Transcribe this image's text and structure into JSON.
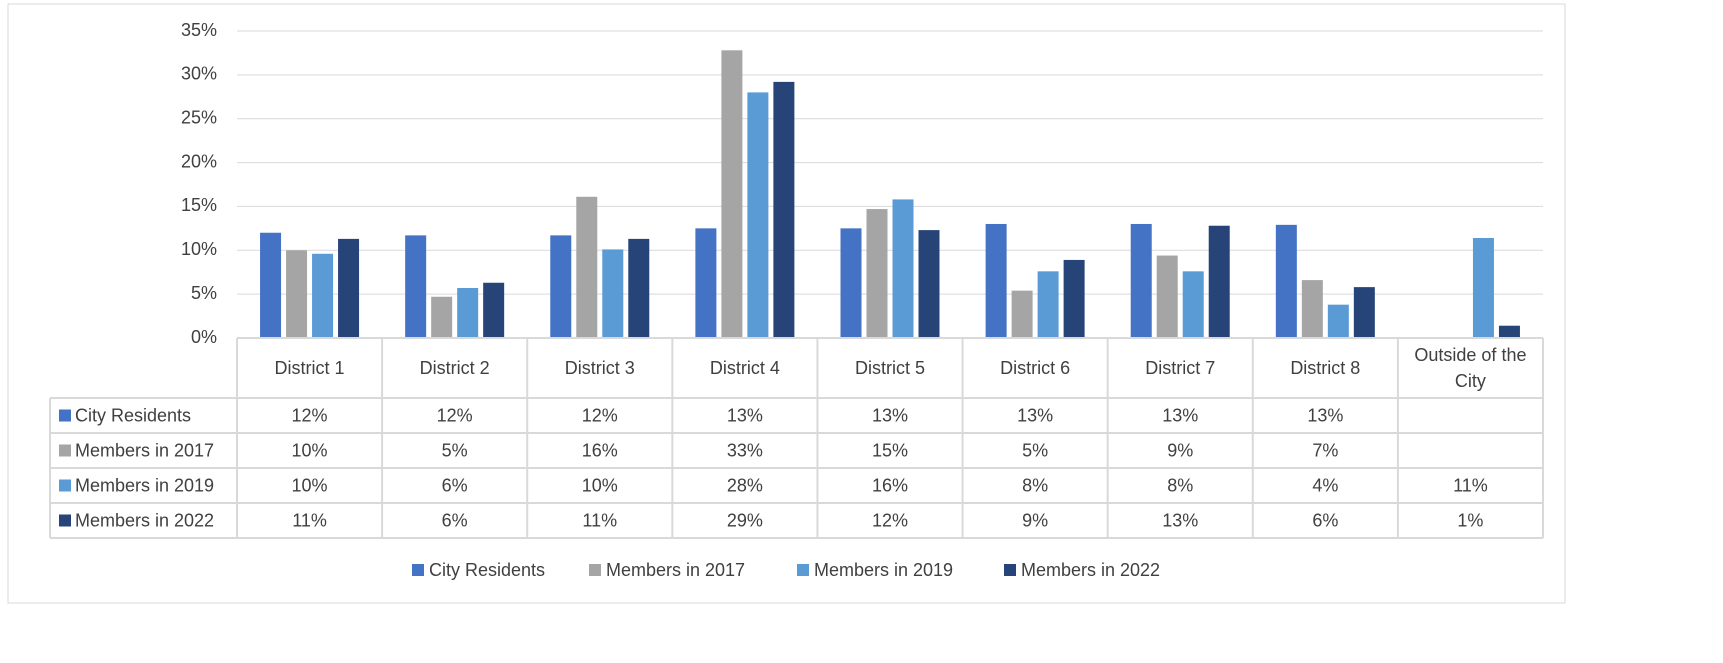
{
  "chart_data": {
    "type": "bar",
    "categories": [
      "District 1",
      "District 2",
      "District 3",
      "District 4",
      "District 5",
      "District 6",
      "District 7",
      "District 8",
      "Outside of the City"
    ],
    "series": [
      {
        "name": "City Residents",
        "color": "#4472c4",
        "values": [
          12.0,
          11.7,
          11.7,
          12.5,
          12.5,
          13.0,
          13.0,
          12.9,
          null
        ],
        "value_labels": [
          "12%",
          "12%",
          "12%",
          "13%",
          "13%",
          "13%",
          "13%",
          "13%",
          null
        ]
      },
      {
        "name": "Members in 2017",
        "color": "#a5a5a5",
        "values": [
          10.0,
          4.7,
          16.1,
          32.8,
          14.7,
          5.4,
          9.4,
          6.6,
          null
        ],
        "value_labels": [
          "10%",
          "5%",
          "16%",
          "33%",
          "15%",
          "5%",
          "9%",
          "7%",
          null
        ]
      },
      {
        "name": "Members in 2019",
        "color": "#5b9bd5",
        "values": [
          9.6,
          5.7,
          10.1,
          28.0,
          15.8,
          7.6,
          7.6,
          3.8,
          11.4
        ],
        "value_labels": [
          "10%",
          "6%",
          "10%",
          "28%",
          "16%",
          "8%",
          "8%",
          "4%",
          "11%"
        ]
      },
      {
        "name": "Members in 2022",
        "color": "#264478",
        "values": [
          11.3,
          6.3,
          11.3,
          29.2,
          12.3,
          8.9,
          12.8,
          5.8,
          1.4
        ],
        "value_labels": [
          "11%",
          "6%",
          "11%",
          "29%",
          "12%",
          "9%",
          "13%",
          "6%",
          "1%"
        ]
      }
    ],
    "ylim": [
      0,
      35
    ],
    "yticks": [
      {
        "value": 0,
        "label": "0%"
      },
      {
        "value": 5,
        "label": "5%"
      },
      {
        "value": 10,
        "label": "10%"
      },
      {
        "value": 15,
        "label": "15%"
      },
      {
        "value": 20,
        "label": "20%"
      },
      {
        "value": 25,
        "label": "25%"
      },
      {
        "value": 30,
        "label": "30%"
      },
      {
        "value": 35,
        "label": "35%"
      }
    ],
    "grid": true,
    "legend": "bottom"
  }
}
